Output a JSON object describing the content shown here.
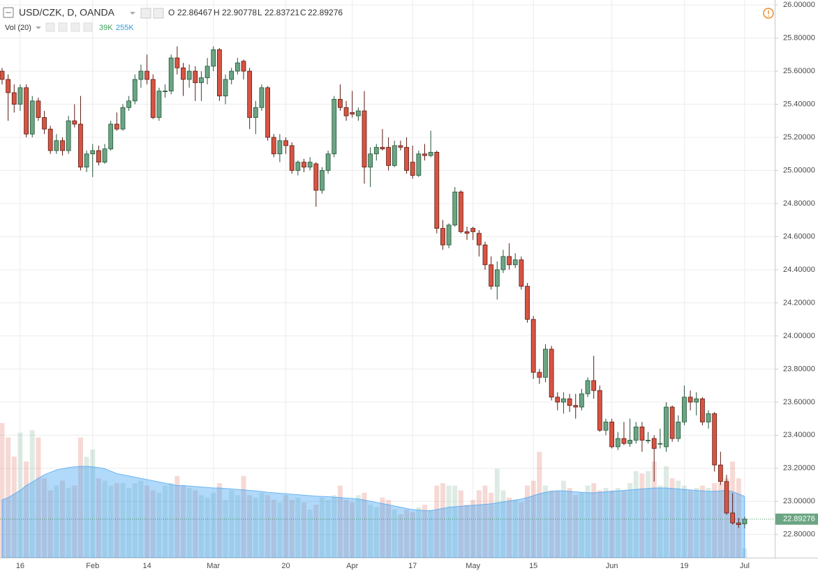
{
  "chart_data": {
    "type": "candlestick",
    "title": "USD/CZK, D, OANDA",
    "ohlc_labels": [
      "O",
      "H",
      "L",
      "C"
    ],
    "up_color": "#6ba583",
    "down_color": "#d75442",
    "categories": [
      null,
      null,
      null,
      "16",
      null,
      null,
      null,
      null,
      null,
      null,
      null,
      null,
      null,
      null,
      null,
      "Feb",
      null,
      null,
      null,
      null,
      null,
      null,
      null,
      null,
      "14",
      null,
      null,
      null,
      null,
      null,
      null,
      null,
      null,
      null,
      null,
      "Mar",
      null,
      null,
      null,
      null,
      null,
      null,
      null,
      null,
      null,
      null,
      null,
      "20",
      null,
      null,
      null,
      null,
      null,
      null,
      null,
      null,
      null,
      null,
      "Apr",
      null,
      null,
      null,
      null,
      null,
      null,
      null,
      null,
      null,
      "17",
      null,
      null,
      null,
      null,
      null,
      null,
      null,
      null,
      null,
      "May",
      null,
      null,
      null,
      null,
      null,
      null,
      null,
      null,
      null,
      "15",
      null,
      null,
      null,
      null,
      null,
      null,
      null,
      null,
      null,
      null,
      null,
      null,
      "Jun",
      null,
      null,
      null,
      null,
      null,
      null,
      null,
      null,
      null,
      null,
      null,
      "19",
      null,
      null,
      null,
      null,
      null,
      null,
      null,
      null,
      null,
      "Jul"
    ],
    "ohlc": [
      [
        25.6,
        25.62,
        25.52,
        25.55
      ],
      [
        25.55,
        25.58,
        25.3,
        25.47
      ],
      [
        25.47,
        25.52,
        25.35,
        25.4
      ],
      [
        25.4,
        25.52,
        25.36,
        25.5
      ],
      [
        25.5,
        25.52,
        25.2,
        25.22
      ],
      [
        25.22,
        25.45,
        25.2,
        25.42
      ],
      [
        25.42,
        25.44,
        25.3,
        25.32
      ],
      [
        25.32,
        25.36,
        25.22,
        25.25
      ],
      [
        25.25,
        25.27,
        25.1,
        25.12
      ],
      [
        25.12,
        25.22,
        25.1,
        25.18
      ],
      [
        25.18,
        25.2,
        25.09,
        25.12
      ],
      [
        25.12,
        25.33,
        25.1,
        25.3
      ],
      [
        25.3,
        25.4,
        25.26,
        25.28
      ],
      [
        25.28,
        25.45,
        25.0,
        25.02
      ],
      [
        25.02,
        25.12,
        24.99,
        25.1
      ],
      [
        25.1,
        25.16,
        24.96,
        25.12
      ],
      [
        25.12,
        25.15,
        25.03,
        25.05
      ],
      [
        25.05,
        25.16,
        25.04,
        25.13
      ],
      [
        25.13,
        25.3,
        25.12,
        25.28
      ],
      [
        25.28,
        25.35,
        25.24,
        25.25
      ],
      [
        25.25,
        25.4,
        25.24,
        25.38
      ],
      [
        25.38,
        25.45,
        25.36,
        25.42
      ],
      [
        25.42,
        25.58,
        25.4,
        25.55
      ],
      [
        25.55,
        25.64,
        25.5,
        25.6
      ],
      [
        25.6,
        25.7,
        25.52,
        25.55
      ],
      [
        25.55,
        25.58,
        25.31,
        25.32
      ],
      [
        25.32,
        25.5,
        25.3,
        25.48
      ],
      [
        25.48,
        25.52,
        25.44,
        25.48
      ],
      [
        25.48,
        25.7,
        25.46,
        25.68
      ],
      [
        25.68,
        25.75,
        25.58,
        25.62
      ],
      [
        25.62,
        25.65,
        25.45,
        25.55
      ],
      [
        25.55,
        25.64,
        25.5,
        25.6
      ],
      [
        25.6,
        25.63,
        25.42,
        25.53
      ],
      [
        25.53,
        25.6,
        25.42,
        25.56
      ],
      [
        25.56,
        25.68,
        25.52,
        25.63
      ],
      [
        25.63,
        25.75,
        25.6,
        25.73
      ],
      [
        25.73,
        25.74,
        25.42,
        25.45
      ],
      [
        25.45,
        25.58,
        25.4,
        25.55
      ],
      [
        25.55,
        25.62,
        25.52,
        25.6
      ],
      [
        25.6,
        25.68,
        25.58,
        25.65
      ],
      [
        25.66,
        25.67,
        25.55,
        25.6
      ],
      [
        25.6,
        25.62,
        25.25,
        25.32
      ],
      [
        25.32,
        25.42,
        25.22,
        25.38
      ],
      [
        25.38,
        25.52,
        25.36,
        25.5
      ],
      [
        25.5,
        25.51,
        25.18,
        25.2
      ],
      [
        25.2,
        25.22,
        25.08,
        25.1
      ],
      [
        25.1,
        25.22,
        25.05,
        25.18
      ],
      [
        25.18,
        25.2,
        25.1,
        25.15
      ],
      [
        25.15,
        25.17,
        24.98,
        25.0
      ],
      [
        25.0,
        25.06,
        24.97,
        25.05
      ],
      [
        25.05,
        25.07,
        24.99,
        25.02
      ],
      [
        25.02,
        25.08,
        25.0,
        25.05
      ],
      [
        25.04,
        25.05,
        24.78,
        24.88
      ],
      [
        24.88,
        25.02,
        24.86,
        25.0
      ],
      [
        25.0,
        25.12,
        24.98,
        25.1
      ],
      [
        25.1,
        25.45,
        25.08,
        25.43
      ],
      [
        25.43,
        25.52,
        25.36,
        25.38
      ],
      [
        25.38,
        25.42,
        25.3,
        25.33
      ],
      [
        25.35,
        25.48,
        25.32,
        25.34
      ],
      [
        25.33,
        25.38,
        25.3,
        25.36
      ],
      [
        25.36,
        25.48,
        24.92,
        25.02
      ],
      [
        25.02,
        25.14,
        24.9,
        25.1
      ],
      [
        25.1,
        25.16,
        25.06,
        25.14
      ],
      [
        25.14,
        25.25,
        25.12,
        25.13
      ],
      [
        25.14,
        25.2,
        25.0,
        25.03
      ],
      [
        25.03,
        25.18,
        25.02,
        25.15
      ],
      [
        25.15,
        25.18,
        25.12,
        25.14
      ],
      [
        25.14,
        25.2,
        24.98,
        25.0
      ],
      [
        25.05,
        25.15,
        24.95,
        24.97
      ],
      [
        24.97,
        25.12,
        24.96,
        25.1
      ],
      [
        25.1,
        25.16,
        25.06,
        25.09
      ],
      [
        25.09,
        25.24,
        25.08,
        25.11
      ],
      [
        25.11,
        25.12,
        24.62,
        24.65
      ],
      [
        24.65,
        24.7,
        24.52,
        24.55
      ],
      [
        24.55,
        24.68,
        24.53,
        24.67
      ],
      [
        24.67,
        24.9,
        24.66,
        24.87
      ],
      [
        24.87,
        24.88,
        24.62,
        24.63
      ],
      [
        24.63,
        24.66,
        24.58,
        24.62
      ],
      [
        24.65,
        24.66,
        24.58,
        24.63
      ],
      [
        24.62,
        24.64,
        24.48,
        24.55
      ],
      [
        24.55,
        24.57,
        24.4,
        24.43
      ],
      [
        24.43,
        24.48,
        24.28,
        24.3
      ],
      [
        24.3,
        24.45,
        24.22,
        24.4
      ],
      [
        24.4,
        24.52,
        24.38,
        24.48
      ],
      [
        24.48,
        24.56,
        24.4,
        24.43
      ],
      [
        24.43,
        24.5,
        24.41,
        24.46
      ],
      [
        24.46,
        24.48,
        24.28,
        24.3
      ],
      [
        24.3,
        24.32,
        24.08,
        24.1
      ],
      [
        24.1,
        24.12,
        23.74,
        23.78
      ],
      [
        23.78,
        23.8,
        23.71,
        23.75
      ],
      [
        23.75,
        23.95,
        23.72,
        23.92
      ],
      [
        23.92,
        23.94,
        23.61,
        23.63
      ],
      [
        23.63,
        23.66,
        23.55,
        23.6
      ],
      [
        23.6,
        23.66,
        23.53,
        23.62
      ],
      [
        23.62,
        23.65,
        23.54,
        23.58
      ],
      [
        23.58,
        23.65,
        23.5,
        23.57
      ],
      [
        23.57,
        23.68,
        23.55,
        23.65
      ],
      [
        23.65,
        23.75,
        23.63,
        23.73
      ],
      [
        23.73,
        23.88,
        23.62,
        23.67
      ],
      [
        23.67,
        23.7,
        23.42,
        23.43
      ],
      [
        23.43,
        23.5,
        23.4,
        23.48
      ],
      [
        23.48,
        23.5,
        23.32,
        23.33
      ],
      [
        23.33,
        23.42,
        23.31,
        23.38
      ],
      [
        23.38,
        23.48,
        23.34,
        23.35
      ],
      [
        23.35,
        23.5,
        23.33,
        23.37
      ],
      [
        23.37,
        23.48,
        23.35,
        23.45
      ],
      [
        23.45,
        23.48,
        23.3,
        23.37
      ],
      [
        23.37,
        23.42,
        23.35,
        23.37
      ],
      [
        23.38,
        23.4,
        23.12,
        23.32
      ],
      [
        23.35,
        23.44,
        23.32,
        23.35
      ],
      [
        23.33,
        23.6,
        23.3,
        23.57
      ],
      [
        23.57,
        23.58,
        23.36,
        23.38
      ],
      [
        23.38,
        23.52,
        23.36,
        23.48
      ],
      [
        23.48,
        23.7,
        23.46,
        23.63
      ],
      [
        23.63,
        23.67,
        23.55,
        23.6
      ],
      [
        23.6,
        23.66,
        23.52,
        23.62
      ],
      [
        23.62,
        23.63,
        23.46,
        23.48
      ],
      [
        23.48,
        23.55,
        23.44,
        23.53
      ],
      [
        23.53,
        23.54,
        23.18,
        23.22
      ],
      [
        23.22,
        23.3,
        23.1,
        23.12
      ],
      [
        23.12,
        23.16,
        22.92,
        22.93
      ],
      [
        22.93,
        23.05,
        22.86,
        22.87
      ],
      [
        22.87,
        22.9,
        22.84,
        22.86
      ],
      [
        22.86467,
        22.90778,
        22.83721,
        22.89276
      ]
    ],
    "volume": {
      "name": "Vol (20)",
      "last_label": "39K",
      "values": [
        560,
        500,
        420,
        520,
        400,
        530,
        500,
        330,
        280,
        300,
        320,
        290,
        300,
        500,
        420,
        450,
        330,
        320,
        300,
        310,
        310,
        290,
        310,
        320,
        300,
        280,
        270,
        300,
        310,
        340,
        300,
        290,
        280,
        260,
        250,
        270,
        310,
        240,
        280,
        260,
        340,
        260,
        250,
        270,
        260,
        240,
        230,
        260,
        240,
        250,
        230,
        200,
        220,
        250,
        240,
        260,
        300,
        240,
        230,
        260,
        270,
        220,
        210,
        250,
        240,
        200,
        180,
        200,
        190,
        210,
        220,
        200,
        300,
        310,
        300,
        300,
        280,
        220,
        240,
        280,
        300,
        270,
        370,
        280,
        250,
        240,
        230,
        300,
        320,
        440,
        300,
        280,
        280,
        320,
        290,
        260,
        270,
        300,
        310,
        280,
        290,
        280,
        290,
        280,
        310,
        360,
        350,
        360,
        400,
        300,
        380,
        330,
        320,
        300,
        280,
        290,
        300,
        290,
        310,
        310,
        330,
        400,
        330,
        39
      ]
    },
    "volume_ma": {
      "last_label": "255K",
      "color": "#3d9ff2",
      "values": [
        240,
        250,
        265,
        280,
        300,
        315,
        330,
        345,
        355,
        365,
        370,
        375,
        378,
        380,
        380,
        378,
        375,
        370,
        360,
        350,
        345,
        340,
        335,
        330,
        325,
        320,
        315,
        310,
        305,
        300,
        300,
        298,
        296,
        294,
        292,
        290,
        290,
        288,
        286,
        284,
        282,
        280,
        278,
        275,
        272,
        270,
        268,
        266,
        264,
        262,
        260,
        258,
        256,
        255,
        254,
        252,
        250,
        248,
        246,
        244,
        240,
        235,
        230,
        225,
        220,
        215,
        210,
        205,
        200,
        198,
        196,
        195,
        200,
        205,
        210,
        212,
        214,
        216,
        218,
        220,
        222,
        224,
        228,
        232,
        236,
        240,
        244,
        250,
        258,
        266,
        272,
        276,
        278,
        278,
        276,
        274,
        272,
        270,
        270,
        272,
        274,
        276,
        278,
        280,
        282,
        284,
        286,
        288,
        290,
        290,
        290,
        288,
        286,
        284,
        282,
        280,
        278,
        276,
        276,
        278,
        280,
        275,
        265,
        255
      ]
    },
    "ylim": [
      22.66,
      26.03
    ],
    "yticks": [
      {
        "value": 22.8,
        "label": "22.80000"
      },
      {
        "value": 23.0,
        "label": "23.00000"
      },
      {
        "value": 23.2,
        "label": "23.20000"
      },
      {
        "value": 23.4,
        "label": "23.40000"
      },
      {
        "value": 23.6,
        "label": "23.60000"
      },
      {
        "value": 23.8,
        "label": "23.80000"
      },
      {
        "value": 24.0,
        "label": "24.00000"
      },
      {
        "value": 24.2,
        "label": "24.20000"
      },
      {
        "value": 24.4,
        "label": "24.40000"
      },
      {
        "value": 24.6,
        "label": "24.60000"
      },
      {
        "value": 24.8,
        "label": "24.80000"
      },
      {
        "value": 25.0,
        "label": "25.00000"
      },
      {
        "value": 25.2,
        "label": "25.20000"
      },
      {
        "value": 25.4,
        "label": "25.40000"
      },
      {
        "value": 25.6,
        "label": "25.60000"
      },
      {
        "value": 25.8,
        "label": "25.80000"
      },
      {
        "value": 26.0,
        "label": "26.00000"
      }
    ],
    "grid": true
  }
}
